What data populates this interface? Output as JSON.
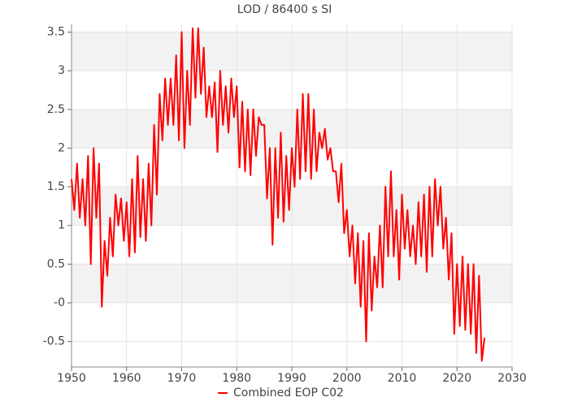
{
  "chart_data": {
    "type": "line",
    "title": "LOD / 86400 s SI",
    "x": [
      1950,
      1950.5,
      1951,
      1951.5,
      1952,
      1952.5,
      1953,
      1953.5,
      1954,
      1954.5,
      1955,
      1955.5,
      1956,
      1956.5,
      1957,
      1957.5,
      1958,
      1958.5,
      1959,
      1959.5,
      1960,
      1960.5,
      1961,
      1961.5,
      1962,
      1962.5,
      1963,
      1963.5,
      1964,
      1964.5,
      1965,
      1965.5,
      1966,
      1966.5,
      1967,
      1967.5,
      1968,
      1968.5,
      1969,
      1969.5,
      1970,
      1970.5,
      1971,
      1971.5,
      1972,
      1972.5,
      1973,
      1973.5,
      1974,
      1974.5,
      1975,
      1975.5,
      1976,
      1976.5,
      1977,
      1977.5,
      1978,
      1978.5,
      1979,
      1979.5,
      1980,
      1980.5,
      1981,
      1981.5,
      1982,
      1982.5,
      1983,
      1983.5,
      1984,
      1984.5,
      1985,
      1985.5,
      1986,
      1986.5,
      1987,
      1987.5,
      1988,
      1988.5,
      1989,
      1989.5,
      1990,
      1990.5,
      1991,
      1991.5,
      1992,
      1992.5,
      1993,
      1993.5,
      1994,
      1994.5,
      1995,
      1995.5,
      1996,
      1996.5,
      1997,
      1997.5,
      1998,
      1998.5,
      1999,
      1999.5,
      2000,
      2000.5,
      2001,
      2001.5,
      2002,
      2002.5,
      2003,
      2003.5,
      2004,
      2004.5,
      2005,
      2005.5,
      2006,
      2006.5,
      2007,
      2007.5,
      2008,
      2008.5,
      2009,
      2009.5,
      2010,
      2010.5,
      2011,
      2011.5,
      2012,
      2012.5,
      2013,
      2013.5,
      2014,
      2014.5,
      2015,
      2015.5,
      2016,
      2016.5,
      2017,
      2017.5,
      2018,
      2018.5,
      2019,
      2019.5,
      2020,
      2020.5,
      2021,
      2021.5,
      2022,
      2022.5,
      2023,
      2023.5,
      2024,
      2024.5,
      2025
    ],
    "series": [
      {
        "name": "Combined EOP C02",
        "color": "#ff0000",
        "values": [
          1.6,
          1.2,
          1.8,
          1.1,
          1.6,
          1.0,
          1.9,
          0.5,
          2.0,
          1.1,
          1.8,
          -0.05,
          0.8,
          0.35,
          1.1,
          0.6,
          1.4,
          1.0,
          1.35,
          0.8,
          1.3,
          0.6,
          1.6,
          0.65,
          1.9,
          0.85,
          1.6,
          0.8,
          1.8,
          1.0,
          2.3,
          1.4,
          2.7,
          2.1,
          2.9,
          2.3,
          2.9,
          2.3,
          3.2,
          2.1,
          3.5,
          2.0,
          3.0,
          2.3,
          3.55,
          2.65,
          3.55,
          2.7,
          3.3,
          2.4,
          2.8,
          2.4,
          2.85,
          1.95,
          3.0,
          2.3,
          2.8,
          2.2,
          2.9,
          2.4,
          2.8,
          1.75,
          2.6,
          1.7,
          2.5,
          1.65,
          2.5,
          1.9,
          2.4,
          2.3,
          2.3,
          1.35,
          2.0,
          0.75,
          2.0,
          1.1,
          2.2,
          1.05,
          1.9,
          1.2,
          2.0,
          1.5,
          2.5,
          1.6,
          2.7,
          1.7,
          2.7,
          1.6,
          2.5,
          1.7,
          2.2,
          2.0,
          2.25,
          1.85,
          2.0,
          1.7,
          1.7,
          1.3,
          1.8,
          0.9,
          1.2,
          0.6,
          1.0,
          0.25,
          0.9,
          -0.05,
          0.8,
          -0.5,
          0.9,
          -0.1,
          0.6,
          0.2,
          1.0,
          0.2,
          1.5,
          0.6,
          1.7,
          0.6,
          1.2,
          0.3,
          1.4,
          0.7,
          1.2,
          0.6,
          1.0,
          0.5,
          1.3,
          0.6,
          1.4,
          0.4,
          1.5,
          0.6,
          1.6,
          1.0,
          1.5,
          0.7,
          1.1,
          0.3,
          0.9,
          -0.4,
          0.5,
          -0.3,
          0.6,
          -0.35,
          0.5,
          -0.4,
          0.5,
          -0.65,
          0.35,
          -0.75,
          -0.45
        ]
      }
    ],
    "xlim": [
      1950,
      2030
    ],
    "xticks": [
      1950,
      1960,
      1970,
      1980,
      1990,
      2000,
      2010,
      2020,
      2030
    ],
    "ylim": [
      -0.83,
      3.6
    ],
    "yticks": [
      -0.5,
      {
        "value": 0,
        "label": "-0"
      },
      0.5,
      1,
      1.5,
      2,
      2.5,
      3,
      3.5
    ],
    "grid": true
  }
}
